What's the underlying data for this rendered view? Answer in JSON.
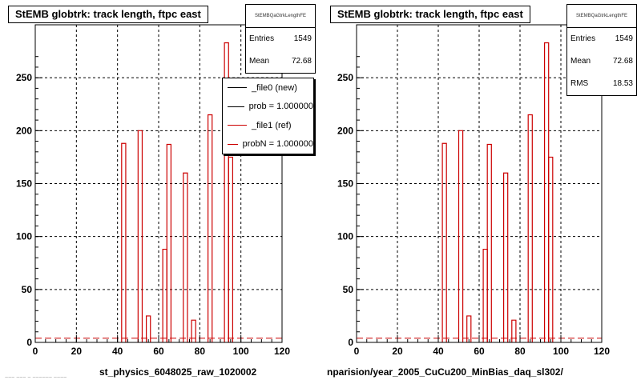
{
  "colors": {
    "ref_line": "#cc0000",
    "new_line": "#000000",
    "grid": "#000000",
    "background": "#ffffff"
  },
  "left_panel": {
    "title": "StEMB globtrk: track length, ftpc east",
    "stats": {
      "header": "StEMBQaGtrkLengthFE",
      "rows": [
        {
          "label": "Entries",
          "value": "1549"
        },
        {
          "label": "Mean",
          "value": "72.68"
        }
      ]
    },
    "legend": [
      {
        "label": "_file0 (new)",
        "color": "#000000"
      },
      {
        "label": "prob = 1.000000",
        "color": "#000000"
      },
      {
        "label": "_file1 (ref)",
        "color": "#cc0000"
      },
      {
        "label": "probN = 1.000000",
        "color": "#cc0000"
      }
    ],
    "footer": "st_physics_6048025_raw_1020002",
    "footer_tiny": "~~~ ~~~ ~ ~~~~~~ ~~~~"
  },
  "right_panel": {
    "title": "StEMB globtrk: track length, ftpc east",
    "stats": {
      "header": "StEMBQaGtrkLengthFE",
      "rows": [
        {
          "label": "Entries",
          "value": "1549"
        },
        {
          "label": "Mean",
          "value": "72.68"
        },
        {
          "label": "RMS",
          "value": "18.53"
        }
      ]
    },
    "footer": "nparision/year_2005_CuCu200_MinBias_daq_sl302/"
  },
  "chart_data": [
    {
      "type": "bar",
      "title": "StEMB globtrk: track length, ftpc east",
      "xlim": [
        0,
        120
      ],
      "ylim": [
        0,
        300
      ],
      "xticks": [
        0,
        20,
        40,
        60,
        80,
        100,
        120
      ],
      "yticks": [
        0,
        50,
        100,
        150,
        200,
        250
      ],
      "grid": true,
      "bin_width": 2,
      "bins": [
        {
          "x": 42,
          "y": 188
        },
        {
          "x": 50,
          "y": 200
        },
        {
          "x": 54,
          "y": 25
        },
        {
          "x": 62,
          "y": 88
        },
        {
          "x": 64,
          "y": 187
        },
        {
          "x": 72,
          "y": 160
        },
        {
          "x": 76,
          "y": 21
        },
        {
          "x": 84,
          "y": 215
        },
        {
          "x": 92,
          "y": 283
        },
        {
          "x": 94,
          "y": 175
        }
      ],
      "baseline_value": 4,
      "legend_position": "top-right"
    },
    {
      "type": "bar",
      "title": "StEMB globtrk: track length, ftpc east",
      "xlim": [
        0,
        120
      ],
      "ylim": [
        0,
        300
      ],
      "xticks": [
        0,
        20,
        40,
        60,
        80,
        100,
        120
      ],
      "yticks": [
        0,
        50,
        100,
        150,
        200,
        250
      ],
      "grid": true,
      "bin_width": 2,
      "bins": [
        {
          "x": 42,
          "y": 188
        },
        {
          "x": 50,
          "y": 200
        },
        {
          "x": 54,
          "y": 25
        },
        {
          "x": 62,
          "y": 88
        },
        {
          "x": 64,
          "y": 187
        },
        {
          "x": 72,
          "y": 160
        },
        {
          "x": 76,
          "y": 21
        },
        {
          "x": 84,
          "y": 215
        },
        {
          "x": 92,
          "y": 283
        },
        {
          "x": 94,
          "y": 175
        }
      ],
      "baseline_value": 4
    }
  ]
}
